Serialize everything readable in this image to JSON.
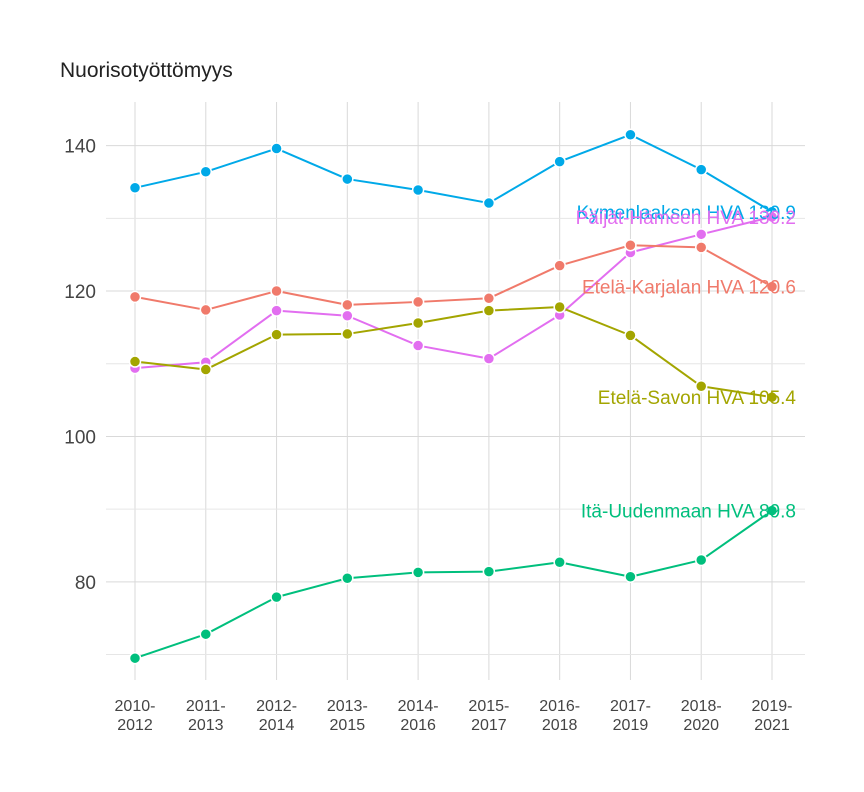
{
  "chart_data": {
    "type": "line",
    "title": "Nuorisotyöttömyys",
    "xlabel": "",
    "ylabel": "",
    "ylim": [
      66.5,
      146
    ],
    "yticks": [
      80,
      100,
      120,
      140
    ],
    "categories": [
      [
        "2010-",
        "2012"
      ],
      [
        "2011-",
        "2013"
      ],
      [
        "2012-",
        "2014"
      ],
      [
        "2013-",
        "2015"
      ],
      [
        "2014-",
        "2016"
      ],
      [
        "2015-",
        "2017"
      ],
      [
        "2016-",
        "2018"
      ],
      [
        "2017-",
        "2019"
      ],
      [
        "2018-",
        "2020"
      ],
      [
        "2019-",
        "2021"
      ]
    ],
    "series": [
      {
        "name": "Kymenlaakson HVA",
        "label": "Kymenlaakson HVA 130.9",
        "color": "#00A9E8",
        "values": [
          134.2,
          136.4,
          139.6,
          135.4,
          133.9,
          132.1,
          137.8,
          141.5,
          136.7,
          130.9
        ]
      },
      {
        "name": "Päijät-Hämeen HVA",
        "label": "Päijät-Hämeen HVA 130.2",
        "color": "#E26EF0",
        "values": [
          109.4,
          110.2,
          117.3,
          116.6,
          112.5,
          110.7,
          116.7,
          125.3,
          127.8,
          130.2
        ]
      },
      {
        "name": "Etelä-Karjalan HVA",
        "label": "Etelä-Karjalan HVA 120.6",
        "color": "#F07A6B",
        "values": [
          119.2,
          117.4,
          120.0,
          118.1,
          118.5,
          119.0,
          123.5,
          126.3,
          126.0,
          120.6
        ]
      },
      {
        "name": "Etelä-Savon HVA",
        "label": "Etelä-Savon HVA 105.4",
        "color": "#A3A500",
        "values": [
          110.3,
          109.2,
          114.0,
          114.1,
          115.6,
          117.3,
          117.8,
          113.9,
          106.9,
          105.4
        ]
      },
      {
        "name": "Itä-Uudenmaan HVA",
        "label": "Itä-Uudenmaan HVA 89.8",
        "color": "#00BF7D",
        "values": [
          69.5,
          72.8,
          77.9,
          80.5,
          81.3,
          81.4,
          82.7,
          80.7,
          83.0,
          89.8
        ]
      }
    ]
  }
}
